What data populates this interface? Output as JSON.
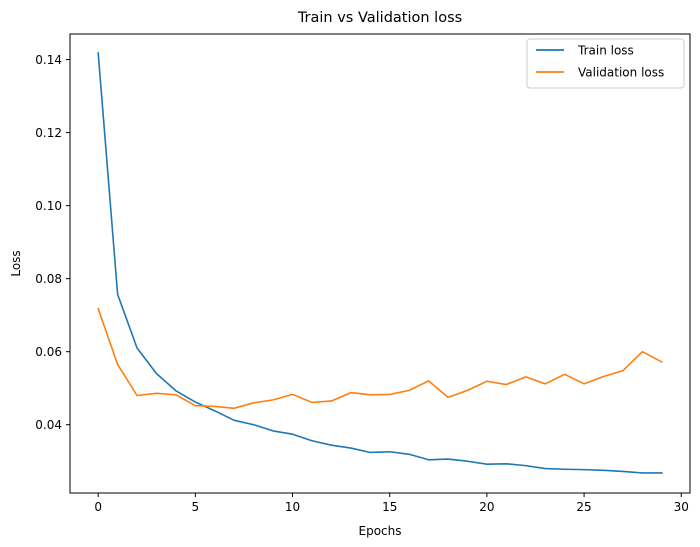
{
  "chart_data": {
    "type": "line",
    "title": "Train vs Validation loss",
    "xlabel": "Epochs",
    "ylabel": "Loss",
    "xlim": [
      -1.45,
      30.45
    ],
    "ylim": [
      0.0213,
      0.147
    ],
    "xticks": [
      0,
      5,
      10,
      15,
      20,
      25,
      30
    ],
    "yticks": [
      0.04,
      0.06,
      0.08,
      0.1,
      0.12,
      0.14
    ],
    "ytick_labels": [
      "0.04",
      "0.06",
      "0.08",
      "0.10",
      "0.12",
      "0.14"
    ],
    "grid": false,
    "legend_position": "top-right",
    "x": [
      0,
      1,
      2,
      3,
      4,
      5,
      6,
      7,
      8,
      9,
      10,
      11,
      12,
      13,
      14,
      15,
      16,
      17,
      18,
      19,
      20,
      21,
      22,
      23,
      24,
      25,
      26,
      27,
      28,
      29
    ],
    "series": [
      {
        "name": "Train loss",
        "color": "#1f77b4",
        "values": [
          0.1418,
          0.0757,
          0.061,
          0.054,
          0.0493,
          0.0462,
          0.0438,
          0.0412,
          0.04,
          0.0383,
          0.0374,
          0.0356,
          0.0344,
          0.0336,
          0.0324,
          0.0326,
          0.0319,
          0.0304,
          0.0306,
          0.03,
          0.0292,
          0.0293,
          0.0288,
          0.028,
          0.0278,
          0.0277,
          0.0275,
          0.0272,
          0.0268,
          0.0268
        ]
      },
      {
        "name": "Validation loss",
        "color": "#ff7f0e",
        "values": [
          0.0718,
          0.0565,
          0.048,
          0.0486,
          0.0482,
          0.0452,
          0.045,
          0.0445,
          0.046,
          0.0468,
          0.0483,
          0.0461,
          0.0465,
          0.0488,
          0.0482,
          0.0483,
          0.0494,
          0.052,
          0.0475,
          0.0494,
          0.0519,
          0.051,
          0.0531,
          0.0512,
          0.0538,
          0.0512,
          0.0532,
          0.0548,
          0.06,
          0.0572
        ]
      }
    ]
  }
}
